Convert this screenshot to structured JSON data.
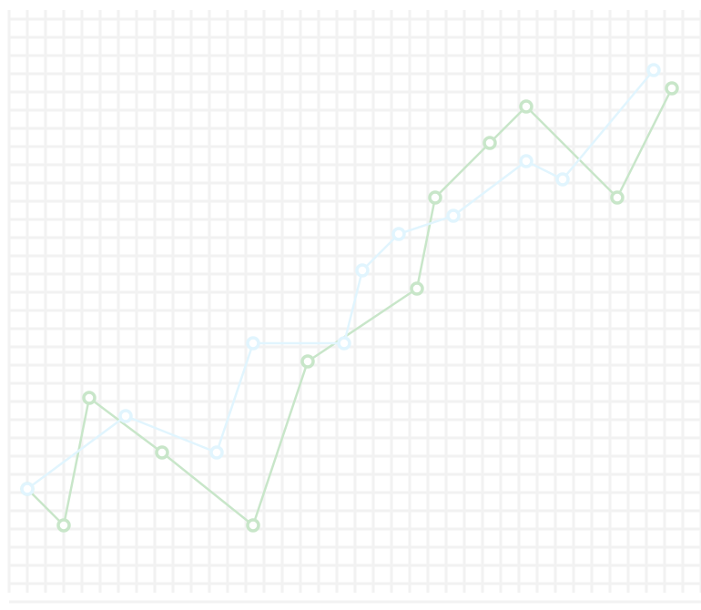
{
  "chart_data": {
    "type": "line",
    "title": "",
    "xlabel": "",
    "ylabel": "",
    "xlim": [
      0,
      19
    ],
    "ylim": [
      0,
      16
    ],
    "grid": true,
    "legend": "none",
    "series": [
      {
        "color": "#c8e6c9",
        "points": [
          [
            0.5,
            3.1
          ],
          [
            1.5,
            2.1
          ],
          [
            2.2,
            5.6
          ],
          [
            4.2,
            4.1
          ],
          [
            6.7,
            2.1
          ],
          [
            8.2,
            6.6
          ],
          [
            11.2,
            8.6
          ],
          [
            11.7,
            11.1
          ],
          [
            13.2,
            12.6
          ],
          [
            14.2,
            13.6
          ],
          [
            16.7,
            11.1
          ],
          [
            18.2,
            14.1
          ]
        ]
      },
      {
        "color": "#e1f5fe",
        "points": [
          [
            0.5,
            3.1
          ],
          [
            3.2,
            5.1
          ],
          [
            5.7,
            4.1
          ],
          [
            6.7,
            7.1
          ],
          [
            9.2,
            7.1
          ],
          [
            9.7,
            9.1
          ],
          [
            10.7,
            10.1
          ],
          [
            12.2,
            10.6
          ],
          [
            14.2,
            12.1
          ],
          [
            15.2,
            11.6
          ],
          [
            17.7,
            14.6
          ]
        ]
      }
    ]
  }
}
